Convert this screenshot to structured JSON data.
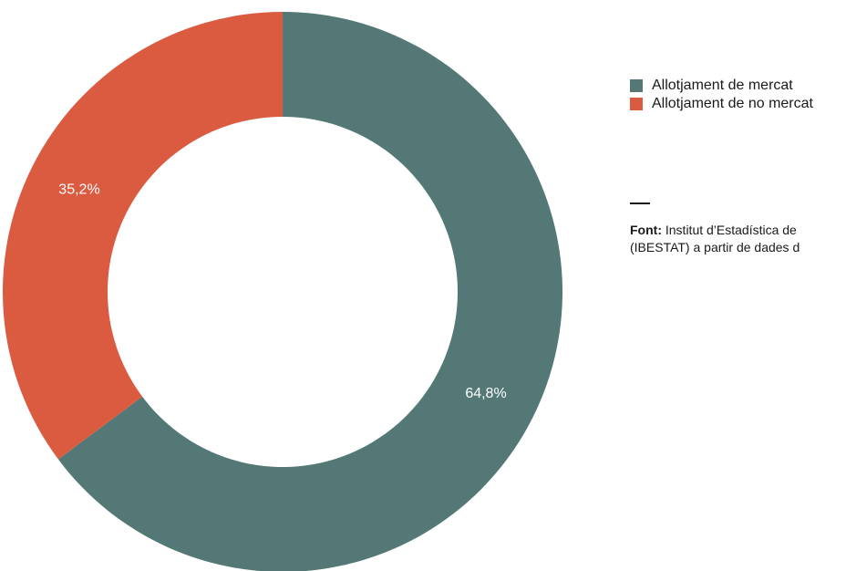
{
  "chart_data": {
    "type": "pie",
    "variant": "donut",
    "slices": [
      {
        "label": "Allotjament de mercat",
        "value": 64.8,
        "display": "64,8%",
        "color": "#537876"
      },
      {
        "label": "Allotjament de no mercat",
        "value": 35.2,
        "display": "35,2%",
        "color": "#DB5B41"
      }
    ],
    "legend": {
      "placement": "right",
      "entries": [
        "Allotjament de mercat",
        "Allotjament de no mercat"
      ]
    }
  },
  "source": {
    "label": "Font:",
    "line1": " Institut d’Estadística de",
    "line2": "(IBESTAT) a partir de dades d"
  }
}
